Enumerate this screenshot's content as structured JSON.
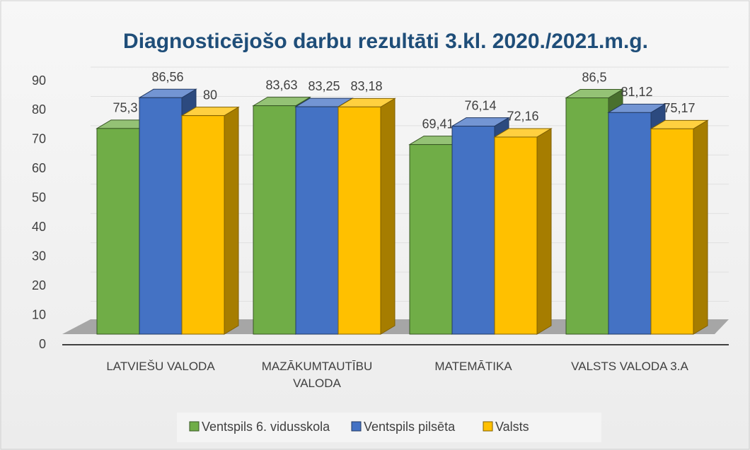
{
  "chart_data": {
    "type": "bar3d",
    "title": "Diagnosticējošo darbu rezultāti 3.kl. 2020./2021.m.g.",
    "categories": [
      "LATVIEŠU VALODA",
      "MAZĀKUMTAUTĪBU VALODA",
      "MATEMĀTIKA",
      "VALSTS VALODA 3.A"
    ],
    "series": [
      {
        "name": "Ventspils 6. vidusskola",
        "color": "#70ad47",
        "values": [
          75.3,
          83.63,
          69.41,
          86.5
        ],
        "value_labels": [
          "75,3",
          "83,63",
          "69,41",
          "86,5"
        ]
      },
      {
        "name": "Ventspils pilsēta",
        "color": "#4472c4",
        "values": [
          86.56,
          83.25,
          76.14,
          81.12
        ],
        "value_labels": [
          "86,56",
          "83,25",
          "76,14",
          "81,12"
        ]
      },
      {
        "name": "Valsts",
        "color": "#ffc000",
        "values": [
          80,
          83.18,
          72.16,
          75.17
        ],
        "value_labels": [
          "80",
          "83,18",
          "72,16",
          "75,17"
        ]
      }
    ],
    "ylim": [
      0,
      90
    ],
    "yticks": [
      0,
      10,
      20,
      30,
      40,
      50,
      60,
      70,
      80,
      90
    ],
    "grid": true,
    "legend": "bottom"
  }
}
